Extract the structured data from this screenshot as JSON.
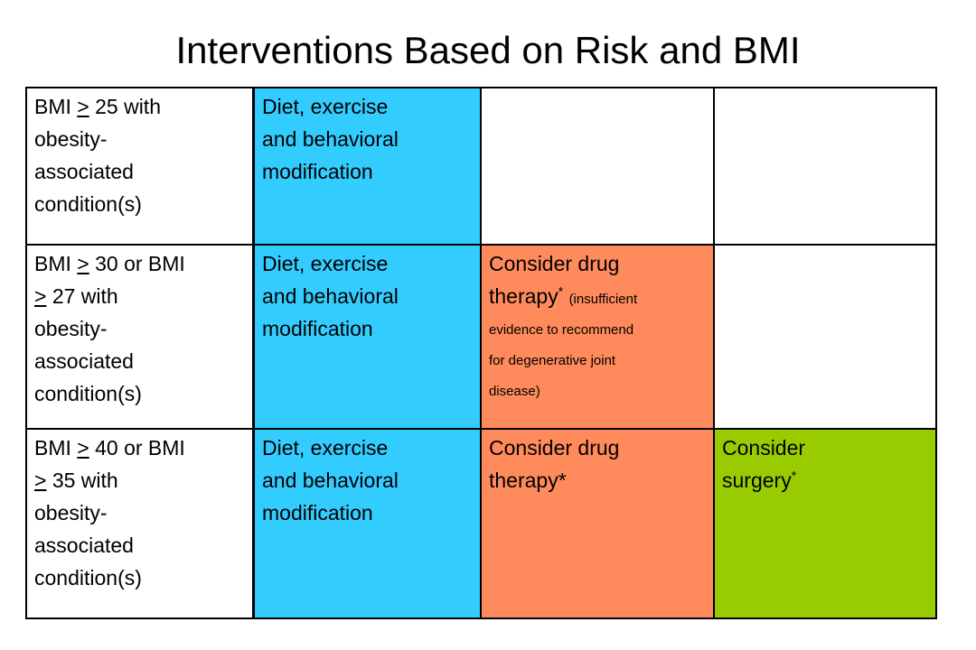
{
  "title": "Interventions Based on Risk and BMI",
  "rows": [
    {
      "criteria": [
        {
          "before": "BMI ",
          "sym": ">",
          "after": " 25 with"
        },
        {
          "text": "obesity-"
        },
        {
          "text": "associated"
        },
        {
          "text": "condition(s)"
        }
      ],
      "lifestyle": [
        "Diet, exercise",
        "and behavioral",
        "modification"
      ]
    },
    {
      "criteria": [
        {
          "before": "BMI ",
          "sym": ">",
          "after": " 30 or BMI"
        },
        {
          "before": "",
          "sym": ">",
          "after": " 27 with"
        },
        {
          "text": "obesity-"
        },
        {
          "text": "associated"
        },
        {
          "text": "condition(s)"
        }
      ],
      "lifestyle": [
        "Diet, exercise",
        "and behavioral",
        "modification"
      ],
      "drug": {
        "line1": "Consider drug",
        "line2": "therapy",
        "mark": "*",
        "note_lines": [
          "(insufficient",
          "evidence to recommend",
          "for degenerative joint",
          "disease)"
        ]
      }
    },
    {
      "criteria": [
        {
          "before": "BMI ",
          "sym": ">",
          "after": " 40 or BMI"
        },
        {
          "before": "",
          "sym": ">",
          "after": " 35 with"
        },
        {
          "text": "obesity-"
        },
        {
          "text": "associated"
        },
        {
          "text": "condition(s)"
        }
      ],
      "lifestyle": [
        "Diet, exercise",
        "and behavioral",
        "modification"
      ],
      "drug": [
        "Consider drug",
        "therapy*"
      ],
      "surgery": {
        "line1": "Consider",
        "line2": "surgery",
        "mark": "*"
      }
    }
  ],
  "colors": {
    "lifestyle": "#33ccff",
    "drug": "#ff8a5c",
    "surgery": "#99cc00"
  }
}
